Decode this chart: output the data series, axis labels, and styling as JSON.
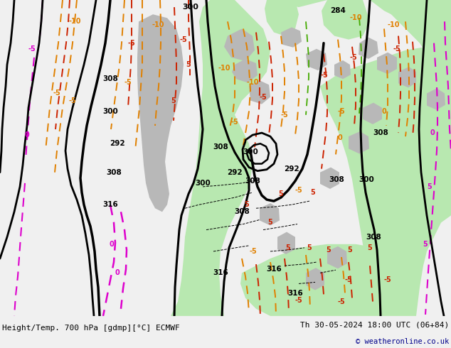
{
  "title_left": "Height/Temp. 700 hPa [gdmp][°C] ECMWF",
  "title_right": "Th 30-05-2024 18:00 UTC (06+84)",
  "copyright": "© weatheronline.co.uk",
  "bg_map": "#f0f0f0",
  "bg_bottom": "#d8d8d8",
  "copyright_color": "#00008B",
  "green": "#b8e8b0",
  "gray": "#b8b8b8",
  "fig_width": 6.34,
  "fig_height": 4.9,
  "dpi": 100,
  "black_lw": 2.0,
  "orange_color": "#e08000",
  "red_color": "#cc2200",
  "magenta_color": "#dd00cc",
  "green_line": "#44aa00"
}
